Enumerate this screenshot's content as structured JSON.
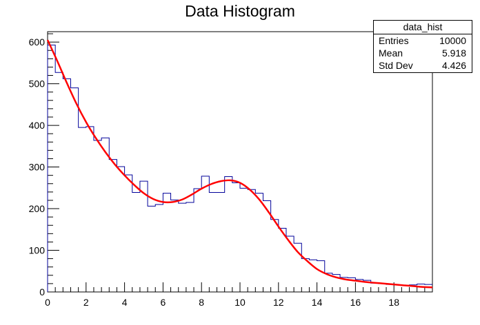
{
  "chart_data": {
    "type": "histogram",
    "title": "Data Histogram",
    "xlabel": "",
    "ylabel": "",
    "xlim": [
      0,
      20
    ],
    "ylim": [
      0,
      625
    ],
    "x_ticks": [
      0,
      2,
      4,
      6,
      8,
      10,
      12,
      14,
      16,
      18
    ],
    "y_ticks": [
      0,
      100,
      200,
      300,
      400,
      500,
      600
    ],
    "grid": false,
    "bin_width": 0.4,
    "bin_edges_start": 0,
    "histogram": {
      "name": "data_hist",
      "color": "#000099",
      "counts": [
        593,
        527,
        512,
        490,
        395,
        397,
        364,
        370,
        318,
        301,
        281,
        239,
        266,
        206,
        210,
        237,
        221,
        213,
        215,
        248,
        278,
        239,
        239,
        277,
        262,
        249,
        246,
        237,
        219,
        174,
        153,
        134,
        117,
        80,
        77,
        75,
        45,
        42,
        35,
        34,
        30,
        28,
        21,
        20,
        18,
        17,
        16,
        17,
        19,
        18
      ]
    },
    "fit": {
      "color": "#ff0000",
      "x": [
        0,
        0.5,
        1,
        1.5,
        2,
        2.5,
        3,
        3.5,
        4,
        4.5,
        5,
        5.5,
        6,
        6.5,
        7,
        7.5,
        8,
        8.5,
        9,
        9.5,
        10,
        10.5,
        11,
        11.5,
        12,
        12.5,
        13,
        13.5,
        14,
        14.5,
        15,
        15.5,
        16,
        16.5,
        17,
        17.5,
        18,
        18.5,
        19,
        19.5,
        20
      ],
      "y": [
        605,
        555,
        502,
        452,
        408,
        370,
        336,
        306,
        280,
        257,
        237,
        223,
        216,
        216,
        222,
        234,
        248,
        259,
        266,
        268,
        262,
        246,
        222,
        191,
        157,
        125,
        96,
        74,
        55,
        43,
        35,
        30,
        27,
        24,
        22,
        20,
        18,
        16,
        14,
        12,
        11
      ]
    }
  },
  "stats_box": {
    "title": "data_hist",
    "rows": [
      {
        "label": "Entries",
        "value": "10000"
      },
      {
        "label": "Mean",
        "value": "5.918"
      },
      {
        "label": "Std Dev",
        "value": "4.426"
      }
    ]
  }
}
